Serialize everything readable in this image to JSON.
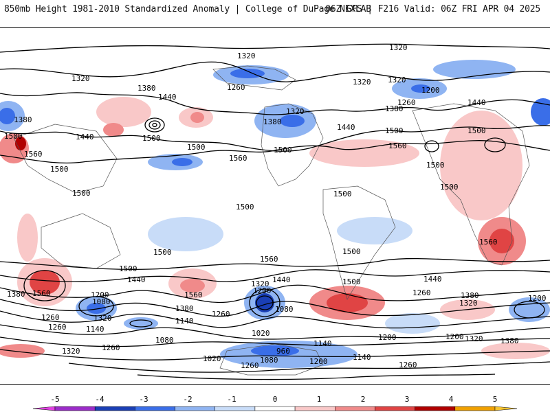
{
  "header": {
    "left_title": "850mb Height 1981-2010 Standardized Anomaly | College of DuPage NEXLAB",
    "right_title": "06Z GFS | F216 Valid: 06Z FRI APR 04 2025"
  },
  "map": {
    "contour_labels": [
      {
        "id": "1320",
        "text": "1320"
      },
      {
        "id": "1500",
        "text": "1500"
      },
      {
        "id": "1560",
        "text": "1560"
      },
      {
        "id": "1380",
        "text": "1380"
      },
      {
        "id": "1440",
        "text": "1440"
      },
      {
        "id": "1260",
        "text": "1260"
      },
      {
        "id": "1200",
        "text": "1200"
      },
      {
        "id": "1140",
        "text": "1140"
      },
      {
        "id": "1080",
        "text": "1080"
      },
      {
        "id": "1020",
        "text": "1020"
      },
      {
        "id": "960",
        "text": "960"
      }
    ]
  },
  "colorbar": {
    "ticks": [
      "-5",
      "-4",
      "-3",
      "-2",
      "-1",
      "0",
      "1",
      "2",
      "3",
      "4",
      "5"
    ],
    "colors": [
      "#e040e0",
      "#9b2cc9",
      "#1a3fb5",
      "#3a6ee8",
      "#8fb4f2",
      "#c8dcf8",
      "#ffffff",
      "#f9c8c8",
      "#f08a8a",
      "#e04444",
      "#b00000",
      "#f0a000",
      "#f6c430"
    ]
  }
}
